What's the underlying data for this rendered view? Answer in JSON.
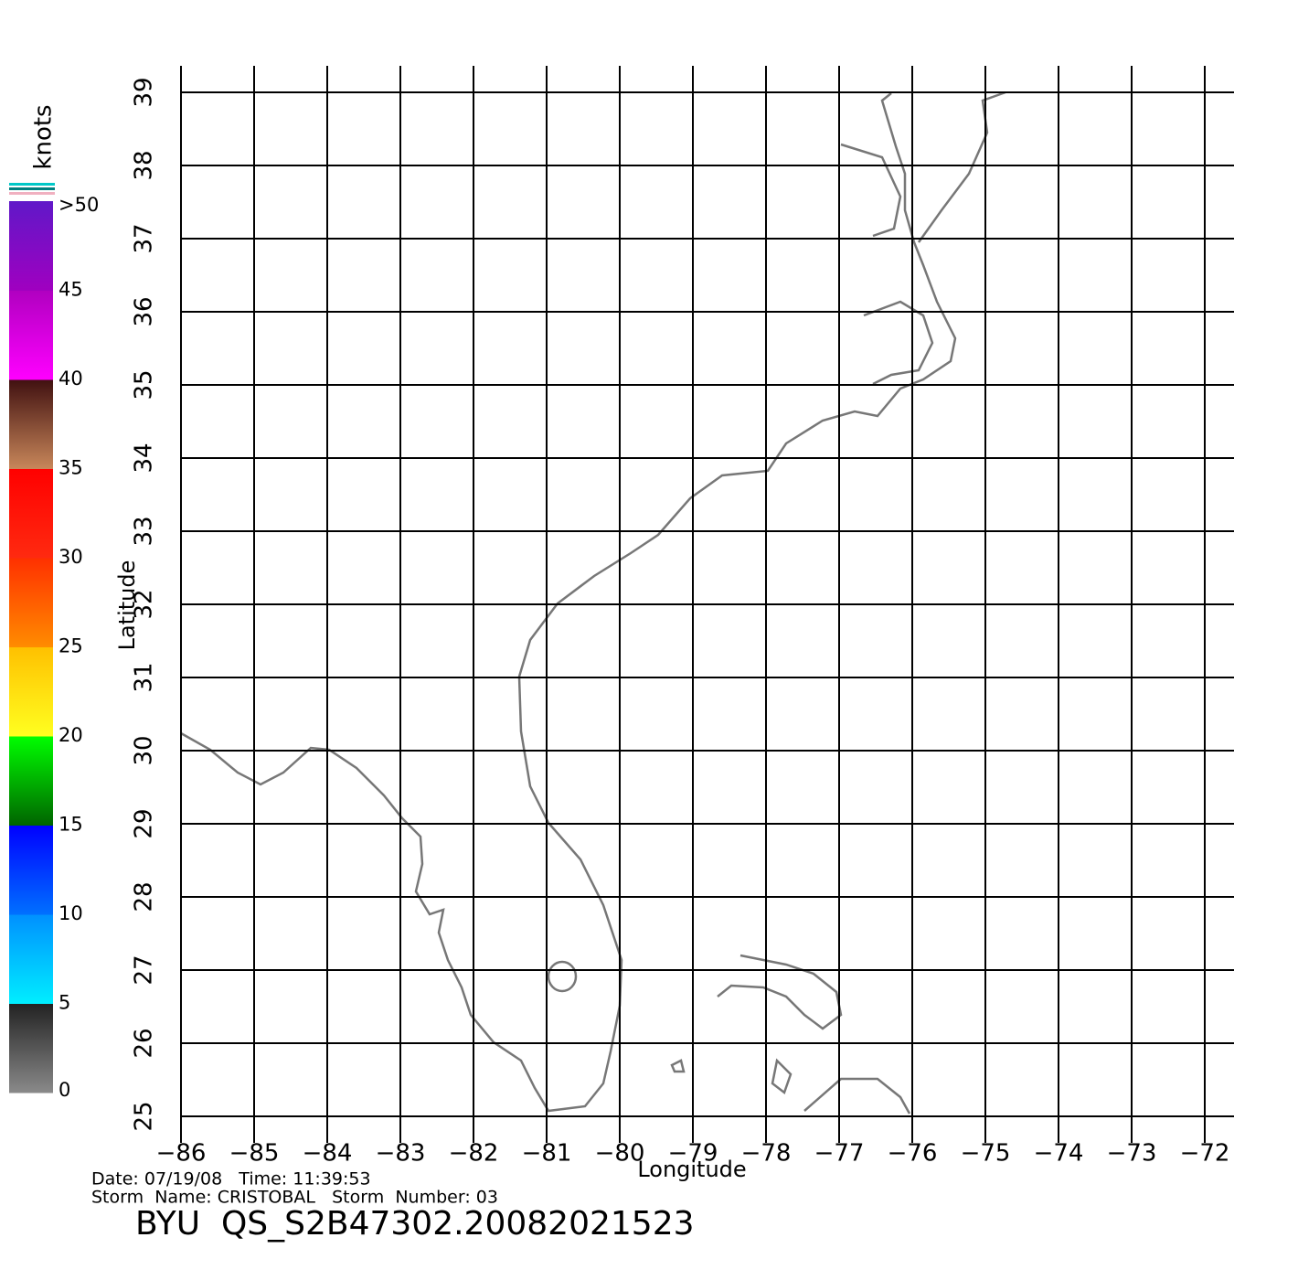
{
  "map": {
    "title": "BYU  QS_S2B47302.20082021523",
    "info": [
      "Date: 07/19/08   Time: 11:39:53",
      "Storm  Name: CRISTOBAL   Storm  Number: 03"
    ],
    "x_label": "Longitude",
    "y_label": "Latitude",
    "xlim": [
      -86,
      -72
    ],
    "ylim": [
      25,
      39
    ],
    "xticks": [
      {
        "value": -86,
        "label": "−86"
      },
      {
        "value": -85,
        "label": "−85"
      },
      {
        "value": -84,
        "label": "−84"
      },
      {
        "value": -83,
        "label": "−83"
      },
      {
        "value": -82,
        "label": "−82"
      },
      {
        "value": -81,
        "label": "−81"
      },
      {
        "value": -80,
        "label": "−80"
      },
      {
        "value": -79,
        "label": "−79"
      },
      {
        "value": -78,
        "label": "−78"
      },
      {
        "value": -77,
        "label": "−77"
      },
      {
        "value": -76,
        "label": "−76"
      },
      {
        "value": -75,
        "label": "−75"
      },
      {
        "value": -74,
        "label": "−74"
      },
      {
        "value": -73,
        "label": "−73"
      },
      {
        "value": -72,
        "label": "−72"
      }
    ],
    "yticks": [
      25,
      26,
      27,
      28,
      29,
      30,
      31,
      32,
      33,
      34,
      35,
      36,
      37,
      38,
      39
    ],
    "grid": true,
    "colorbar": {
      "title": "knots",
      "clim": [
        0,
        50
      ],
      "ticks": [
        0,
        5,
        10,
        15,
        20,
        25,
        30,
        35,
        40,
        45,
        {
          "value": 50,
          "label": ">50"
        }
      ],
      "colors": [
        [
          "#8a8a8a",
          "#222222"
        ],
        [
          "#00eeff",
          "#0090ff"
        ],
        [
          "#0070ff",
          "#0000ff"
        ],
        [
          "#006400",
          "#00ff00"
        ],
        [
          "#ffff20",
          "#ffc000"
        ],
        [
          "#ff8c00",
          "#ff3000"
        ],
        [
          "#ff2a10",
          "#ff0000"
        ],
        [
          "#c8875a",
          "#401010"
        ],
        [
          "#ff00ff",
          "#b000c0"
        ],
        [
          "#a000c0",
          "#6018c8"
        ]
      ]
    }
  }
}
